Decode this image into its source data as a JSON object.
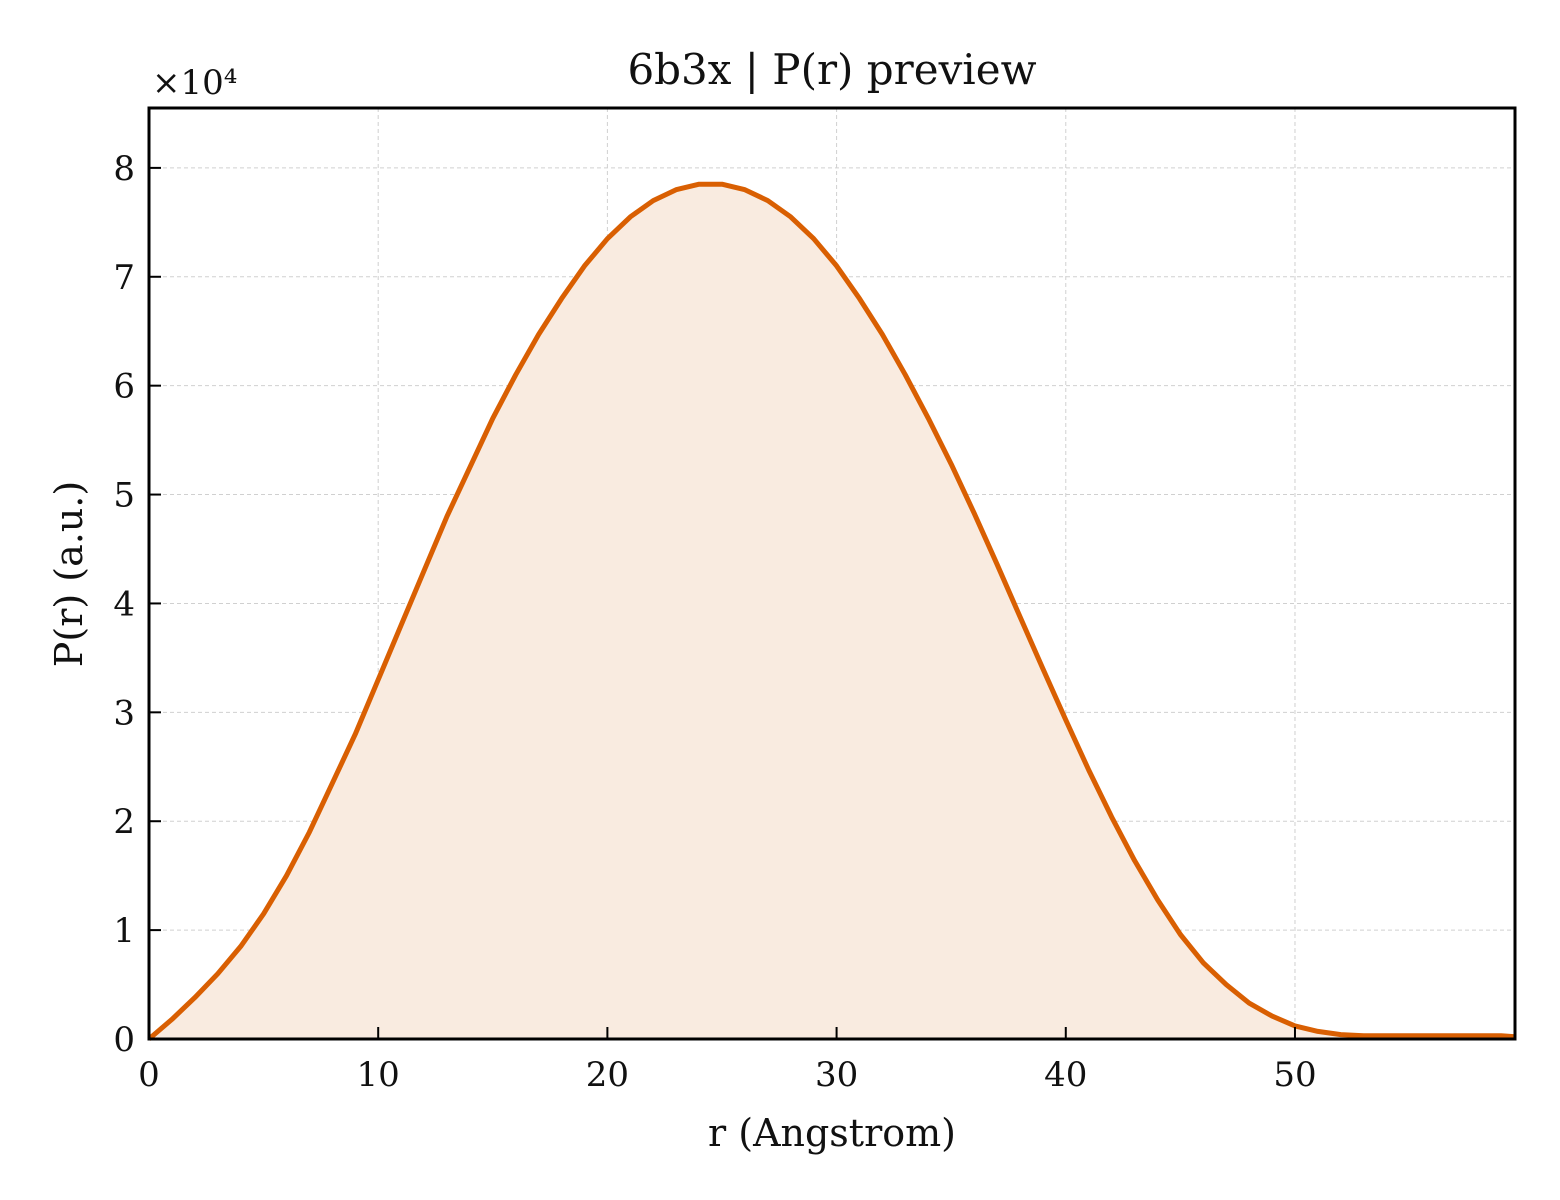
{
  "chart_data": {
    "type": "area",
    "title": "6b3x | P(r) preview",
    "xlabel": "r (Angstrom)",
    "ylabel": "P(r) (a.u.)",
    "y_offset_label": "×10⁴",
    "xlim": [
      0,
      59.6
    ],
    "ylim": [
      0,
      8.55
    ],
    "y_scale_factor": 10000,
    "xticks": [
      0,
      10,
      20,
      30,
      40,
      50
    ],
    "yticks": [
      0,
      1,
      2,
      3,
      4,
      5,
      6,
      7,
      8
    ],
    "grid": true,
    "legend": "none",
    "colors": {
      "line": "#d95f02",
      "fill": "#f9ebe0",
      "grid": "#d0d0d0",
      "axis": "#000000"
    },
    "series": [
      {
        "x": [
          0,
          1,
          2,
          3,
          4,
          5,
          6,
          7,
          8,
          9,
          10,
          11,
          12,
          13,
          14,
          15,
          16,
          17,
          18,
          19,
          20,
          21,
          22,
          23,
          24,
          25,
          26,
          27,
          28,
          29,
          30,
          31,
          32,
          33,
          34,
          35,
          36,
          37,
          38,
          39,
          40,
          41,
          42,
          43,
          44,
          45,
          46,
          47,
          48,
          49,
          50,
          51,
          52,
          53,
          54,
          55,
          56,
          57,
          58,
          59,
          59.6
        ],
        "y": [
          0.0,
          0.18,
          0.38,
          0.6,
          0.85,
          1.15,
          1.5,
          1.9,
          2.35,
          2.8,
          3.3,
          3.8,
          4.3,
          4.8,
          5.25,
          5.7,
          6.1,
          6.47,
          6.8,
          7.1,
          7.35,
          7.55,
          7.7,
          7.8,
          7.85,
          7.85,
          7.8,
          7.7,
          7.55,
          7.35,
          7.1,
          6.8,
          6.47,
          6.1,
          5.7,
          5.28,
          4.83,
          4.36,
          3.88,
          3.4,
          2.93,
          2.47,
          2.04,
          1.64,
          1.28,
          0.96,
          0.7,
          0.5,
          0.33,
          0.21,
          0.12,
          0.07,
          0.04,
          0.03,
          0.03,
          0.03,
          0.03,
          0.03,
          0.03,
          0.03,
          0.02
        ]
      }
    ]
  }
}
